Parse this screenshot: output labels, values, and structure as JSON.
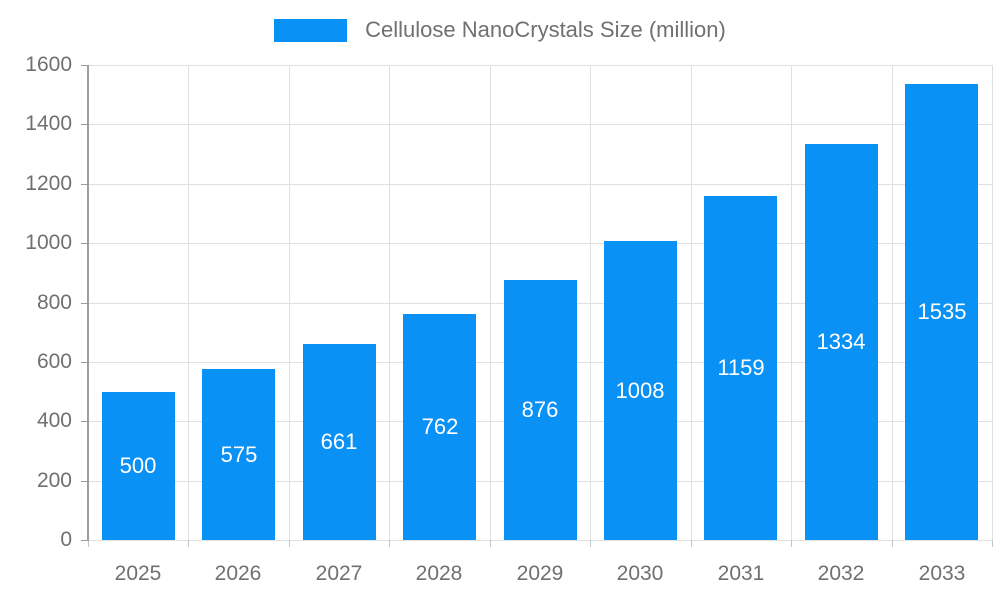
{
  "chart_data": {
    "type": "bar",
    "title": "Cellulose NanoCrystals Size (million)",
    "categories": [
      "2025",
      "2026",
      "2027",
      "2028",
      "2029",
      "2030",
      "2031",
      "2032",
      "2033"
    ],
    "values": [
      500,
      575,
      661,
      762,
      876,
      1008,
      1159,
      1334,
      1535
    ],
    "xlabel": "",
    "ylabel": "",
    "ylim": [
      0,
      1600
    ],
    "yticks": [
      0,
      200,
      400,
      600,
      800,
      1000,
      1200,
      1400,
      1600
    ],
    "grid": true,
    "legend_position": "top-center",
    "bar_labels_inside": true,
    "colors": {
      "bar": "#0a91f5",
      "bar_label": "#ffffff",
      "axis_text": "#707070",
      "legend_text": "#707070",
      "grid_line": "#e0e0e0",
      "axis_line": "#9e9e9e",
      "minor_tick": "#c4c4c4",
      "background": "#ffffff"
    }
  }
}
